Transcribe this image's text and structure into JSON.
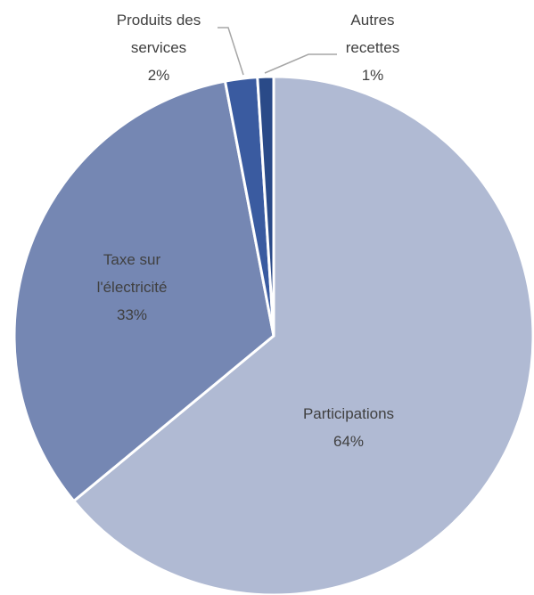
{
  "chart_data": {
    "type": "pie",
    "title": "",
    "start_angle_deg": 0,
    "direction": "clockwise",
    "slices": [
      {
        "label_lines": [
          "Participations"
        ],
        "value": 64,
        "percent_label": "64%",
        "color": "#B0BAD3"
      },
      {
        "label_lines": [
          "Taxe sur",
          "l'électricité"
        ],
        "value": 33,
        "percent_label": "33%",
        "color": "#7587B3"
      },
      {
        "label_lines": [
          "Produits des",
          "services"
        ],
        "value": 2,
        "percent_label": "2%",
        "color": "#3A5BA0"
      },
      {
        "label_lines": [
          "Autres",
          "recettes"
        ],
        "value": 1,
        "percent_label": "1%",
        "color": "#2A4A88"
      }
    ],
    "slice_border_color": "#FFFFFF",
    "leader_line_color": "#A6A6A6",
    "label_color": "#404040"
  }
}
